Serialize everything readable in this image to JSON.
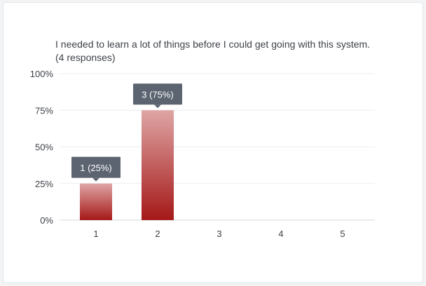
{
  "chart_data": {
    "type": "bar",
    "title": "I needed to learn a lot of things before I could get going with this system. (4 responses)",
    "categories": [
      "1",
      "2",
      "3",
      "4",
      "5"
    ],
    "values": [
      25,
      75,
      0,
      0,
      0
    ],
    "counts": [
      1,
      3,
      0,
      0,
      0
    ],
    "ylim": [
      0,
      100
    ],
    "yticks": [
      0,
      25,
      50,
      75,
      100
    ],
    "ytick_labels": [
      "0%",
      "25%",
      "50%",
      "75%",
      "100%"
    ],
    "data_labels": [
      "1 (25%)",
      "3 (75%)",
      "",
      "",
      ""
    ],
    "xlabel": "",
    "ylabel": "",
    "grid": true,
    "colors": {
      "bar_top": "#dfa5a5",
      "bar_bottom": "#a51818",
      "label_bg": "#5b6470",
      "grid": "#eceef1",
      "axis": "#d7dade"
    }
  }
}
